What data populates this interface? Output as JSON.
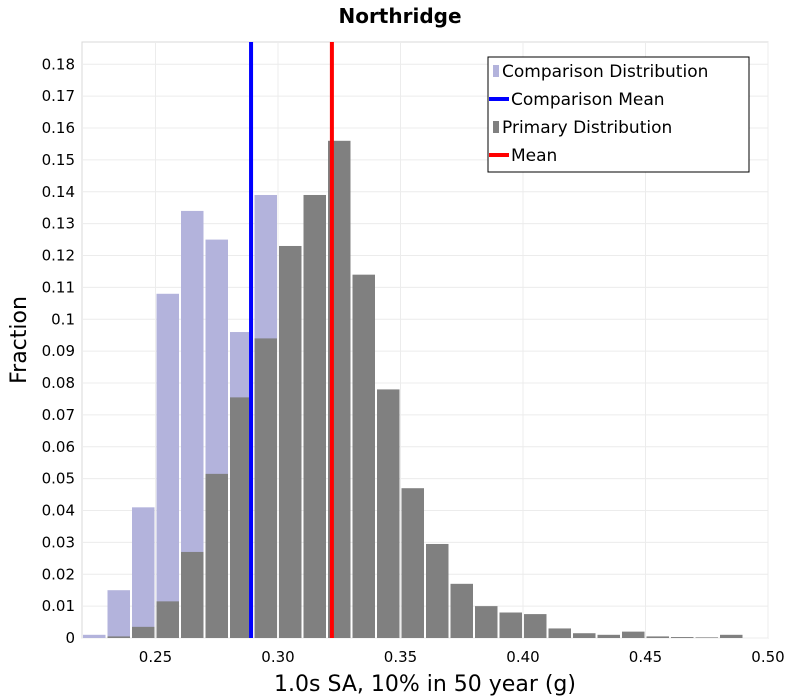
{
  "chart_data": {
    "type": "bar",
    "title": "Northridge",
    "xlabel": "1.0s SA, 10% in 50 year (g)",
    "ylabel": "Fraction",
    "xlim": [
      0.22,
      0.5
    ],
    "ylim": [
      0,
      0.187
    ],
    "x_ticks": [
      0.25,
      0.3,
      0.35,
      0.4,
      0.45,
      0.5
    ],
    "x_tick_labels": [
      "0.25",
      "0.30",
      "0.35",
      "0.40",
      "0.45",
      "0.50"
    ],
    "y_ticks": [
      0,
      0.01,
      0.02,
      0.03,
      0.04,
      0.05,
      0.06,
      0.07,
      0.08,
      0.09,
      0.1,
      0.11,
      0.12,
      0.13,
      0.14,
      0.15,
      0.16,
      0.17,
      0.18
    ],
    "y_tick_labels": [
      "0",
      "0.01",
      "0.02",
      "0.03",
      "0.04",
      "0.05",
      "0.06",
      "0.07",
      "0.08",
      "0.09",
      "0.1",
      "0.11",
      "0.12",
      "0.13",
      "0.14",
      "0.15",
      "0.16",
      "0.17",
      "0.18"
    ],
    "bin_width": 0.01,
    "grid": true,
    "legend_position": "top-right",
    "series": [
      {
        "name": "Comparison Distribution",
        "kind": "histogram",
        "color": "#b3b3dc",
        "bin_starts": [
          0.22,
          0.23,
          0.24,
          0.25,
          0.26,
          0.27,
          0.28,
          0.29
        ],
        "values": [
          0.001,
          0.015,
          0.041,
          0.108,
          0.134,
          0.125,
          0.096,
          0.139
        ]
      },
      {
        "name": "Primary Distribution",
        "kind": "histogram",
        "color": "#808080",
        "bin_starts": [
          0.23,
          0.24,
          0.25,
          0.26,
          0.27,
          0.28,
          0.29,
          0.3,
          0.31,
          0.32,
          0.33,
          0.34,
          0.35,
          0.36,
          0.37,
          0.38,
          0.39,
          0.4,
          0.41,
          0.42,
          0.43,
          0.44,
          0.45,
          0.46,
          0.47,
          0.48
        ],
        "values": [
          0.0005,
          0.0035,
          0.0115,
          0.027,
          0.0515,
          0.0755,
          0.094,
          0.123,
          0.139,
          0.156,
          0.114,
          0.078,
          0.047,
          0.0295,
          0.017,
          0.01,
          0.008,
          0.0075,
          0.003,
          0.0015,
          0.001,
          0.002,
          0.0005,
          0.0003,
          0.0002,
          0.001
        ]
      },
      {
        "name": "Comparison Mean",
        "kind": "vline",
        "color": "#0000ff",
        "x": 0.289
      },
      {
        "name": "Mean",
        "kind": "vline",
        "color": "#ff0000",
        "x": 0.322
      }
    ],
    "legend": [
      "Comparison Distribution",
      "Comparison Mean",
      "Primary Distribution",
      "Mean"
    ]
  }
}
